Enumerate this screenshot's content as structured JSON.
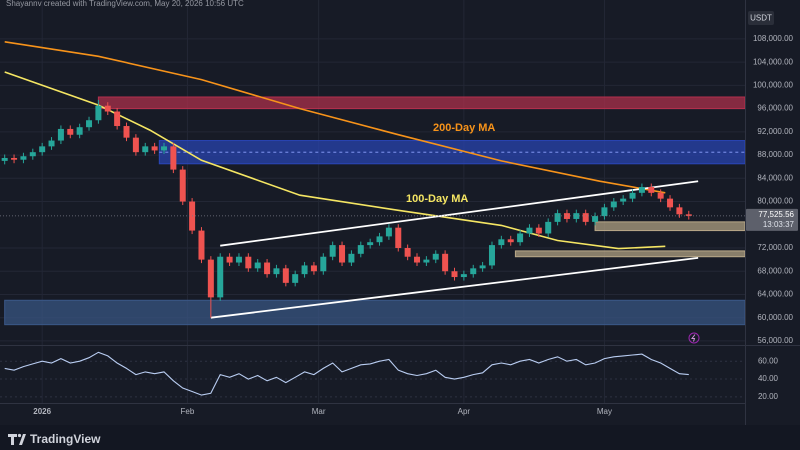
{
  "chart_data": {
    "type": "candlestick",
    "header": "Shayannv created with TradingView.com, May 20, 2026 10:56 UTC",
    "currency": "USDT",
    "brand": "TradingView",
    "x": [
      0,
      2,
      4,
      6,
      8,
      10,
      12,
      14,
      16,
      18,
      20,
      22,
      24,
      26,
      28,
      30,
      32,
      34,
      36,
      38,
      40,
      42,
      44,
      46,
      48,
      50,
      52,
      54,
      56,
      58,
      60,
      62,
      64,
      66,
      68,
      70,
      72,
      74,
      76,
      78,
      80,
      82,
      84,
      86,
      88,
      90,
      92,
      94,
      96,
      98,
      100,
      102,
      104,
      106,
      108,
      110,
      112,
      114,
      116,
      118,
      120,
      122,
      124,
      126,
      128,
      130,
      132,
      134,
      136,
      138,
      140,
      142,
      144,
      146
    ],
    "open": [
      87000,
      87500,
      87200,
      87800,
      88500,
      89500,
      90500,
      92500,
      91500,
      92800,
      94000,
      96500,
      95500,
      93000,
      91000,
      88500,
      89500,
      88800,
      89500,
      85500,
      80000,
      75000,
      70000,
      63500,
      70500,
      69500,
      70500,
      68500,
      69500,
      67500,
      68500,
      66000,
      67500,
      69000,
      68000,
      70500,
      72500,
      69500,
      71000,
      72500,
      73000,
      74000,
      75500,
      72000,
      70500,
      69500,
      70000,
      71000,
      68000,
      67000,
      67500,
      68500,
      69000,
      72500,
      73500,
      73000,
      74500,
      75500,
      74500,
      76500,
      78000,
      77000,
      78000,
      76500,
      77500,
      79000,
      80000,
      80500,
      81500,
      82500,
      81500,
      80500,
      79000,
      77800
    ],
    "high": [
      88100,
      88100,
      88400,
      89100,
      90100,
      91100,
      93100,
      93100,
      93400,
      94600,
      97500,
      97100,
      96100,
      93600,
      91600,
      90100,
      90100,
      90100,
      90100,
      86100,
      80600,
      75600,
      70600,
      71100,
      71100,
      71100,
      71100,
      70100,
      70100,
      69100,
      69100,
      68100,
      69600,
      69600,
      71100,
      73100,
      73100,
      71600,
      73100,
      73600,
      74600,
      76100,
      76100,
      72600,
      71100,
      70600,
      71600,
      71600,
      68600,
      68100,
      69100,
      69600,
      73100,
      74100,
      74100,
      75100,
      76100,
      76100,
      77100,
      78600,
      78600,
      78600,
      78600,
      78100,
      79600,
      80600,
      81100,
      82100,
      83100,
      83100,
      82100,
      81100,
      79600,
      78400
    ],
    "low": [
      86400,
      86600,
      86600,
      87200,
      87900,
      88900,
      89900,
      90900,
      90900,
      92200,
      93400,
      94900,
      92400,
      90400,
      87900,
      87900,
      88200,
      88200,
      84900,
      79400,
      74400,
      69400,
      60000,
      62900,
      68900,
      68900,
      67900,
      67900,
      66900,
      66900,
      65400,
      65400,
      66900,
      67400,
      67400,
      69900,
      68900,
      68900,
      70400,
      71900,
      72400,
      73400,
      71400,
      69900,
      68900,
      68900,
      69400,
      67400,
      66400,
      66400,
      66900,
      67900,
      68400,
      71900,
      72400,
      72400,
      73900,
      73900,
      73900,
      75900,
      76400,
      76400,
      75900,
      75900,
      76900,
      78400,
      79400,
      79900,
      80900,
      80900,
      79900,
      78400,
      77200,
      76900
    ],
    "close": [
      87500,
      87200,
      87800,
      88500,
      89500,
      90500,
      92500,
      91500,
      92800,
      94000,
      96500,
      95500,
      93000,
      91000,
      88500,
      89500,
      88800,
      89500,
      85500,
      80000,
      75000,
      70000,
      63500,
      70500,
      69500,
      70500,
      68500,
      69500,
      67500,
      68500,
      66000,
      67500,
      69000,
      68000,
      70500,
      72500,
      69500,
      71000,
      72500,
      73000,
      74000,
      75500,
      72000,
      70500,
      69500,
      70000,
      71000,
      68000,
      67000,
      67500,
      68500,
      69000,
      72500,
      73500,
      73000,
      74500,
      75500,
      74500,
      76500,
      78000,
      77000,
      78000,
      76500,
      77500,
      79000,
      80000,
      80500,
      81500,
      82500,
      81500,
      80500,
      79000,
      77800,
      77525
    ],
    "up_color": "#26a69a",
    "down_color": "#ef5350",
    "xlim": [
      -1,
      158
    ],
    "xticks": [
      {
        "value": 8,
        "label": "2026"
      },
      {
        "value": 39,
        "label": "Feb"
      },
      {
        "value": 67,
        "label": "Mar"
      },
      {
        "value": 98,
        "label": "Apr"
      },
      {
        "value": 128,
        "label": "May"
      }
    ],
    "ylim": [
      55300,
      114700
    ],
    "yticks": [
      {
        "value": 56000,
        "label": "56,000.00"
      },
      {
        "value": 60000,
        "label": "60,000.00"
      },
      {
        "value": 64000,
        "label": "64,000.00"
      },
      {
        "value": 68000,
        "label": "68,000.00"
      },
      {
        "value": 72000,
        "label": "72,000.00"
      },
      {
        "value": 80000,
        "label": "80,000.00"
      },
      {
        "value": 84000,
        "label": "84,000.00"
      },
      {
        "value": 88000,
        "label": "88,000.00"
      },
      {
        "value": 92000,
        "label": "92,000.00"
      },
      {
        "value": 96000,
        "label": "96,000.00"
      },
      {
        "value": 100000,
        "label": "100,000.00"
      },
      {
        "value": 104000,
        "label": "104,000.00"
      },
      {
        "value": 108000,
        "label": "108,000.00"
      }
    ],
    "grid": true,
    "series": [
      {
        "name": "200-Day MA",
        "color": "#f7931a",
        "x": [
          0,
          20,
          42,
          63,
          84,
          106,
          127,
          141
        ],
        "values": [
          107500,
          105000,
          101000,
          96000,
          91500,
          87000,
          83500,
          81500
        ]
      },
      {
        "name": "100-Day MA",
        "color": "#f5e663",
        "x": [
          0,
          20,
          31,
          42,
          63,
          84,
          106,
          118,
          131,
          141
        ],
        "values": [
          102300,
          96600,
          92300,
          87100,
          81100,
          78500,
          75900,
          73300,
          71900,
          72300
        ]
      }
    ],
    "channel": [
      {
        "x": [
          46,
          148
        ],
        "values": [
          72400,
          83500
        ]
      },
      {
        "x": [
          44,
          148
        ],
        "values": [
          60000,
          70300
        ]
      }
    ],
    "zones": [
      {
        "x_start": 20,
        "low": 96000,
        "high": 98000,
        "color": "#b5304d"
      },
      {
        "x_start": 33,
        "low": 86500,
        "high": 90500,
        "color": "#2a46b8"
      },
      {
        "x_start": 126,
        "low": 75000,
        "high": 76500,
        "color": "#b9a888"
      },
      {
        "x_start": 109,
        "low": 70500,
        "high": 71500,
        "color": "#b9a888"
      },
      {
        "x_start": 0,
        "low": 58800,
        "high": 63000,
        "color": "#3b5888"
      }
    ],
    "last_price": {
      "value": 77525.56,
      "label": "77,525.56"
    },
    "countdown": "13:03:37",
    "rsi": {
      "color": "#b9cdf2",
      "ylim": [
        3,
        76
      ],
      "yticks": [
        {
          "value": 20,
          "label": "20.00"
        },
        {
          "value": 40,
          "label": "40.00"
        },
        {
          "value": 60,
          "label": "60.00"
        }
      ],
      "values": [
        52,
        50,
        54,
        57,
        60,
        58,
        63,
        58,
        60,
        64,
        70,
        66,
        58,
        52,
        45,
        48,
        46,
        48,
        38,
        30,
        26,
        22,
        24,
        45,
        42,
        46,
        40,
        44,
        38,
        42,
        36,
        42,
        48,
        45,
        52,
        58,
        48,
        52,
        56,
        57,
        60,
        62,
        50,
        46,
        44,
        46,
        50,
        42,
        40,
        42,
        45,
        47,
        56,
        58,
        56,
        60,
        62,
        58,
        62,
        65,
        60,
        62,
        56,
        58,
        63,
        65,
        66,
        67,
        68,
        62,
        58,
        52,
        46,
        45
      ]
    }
  }
}
